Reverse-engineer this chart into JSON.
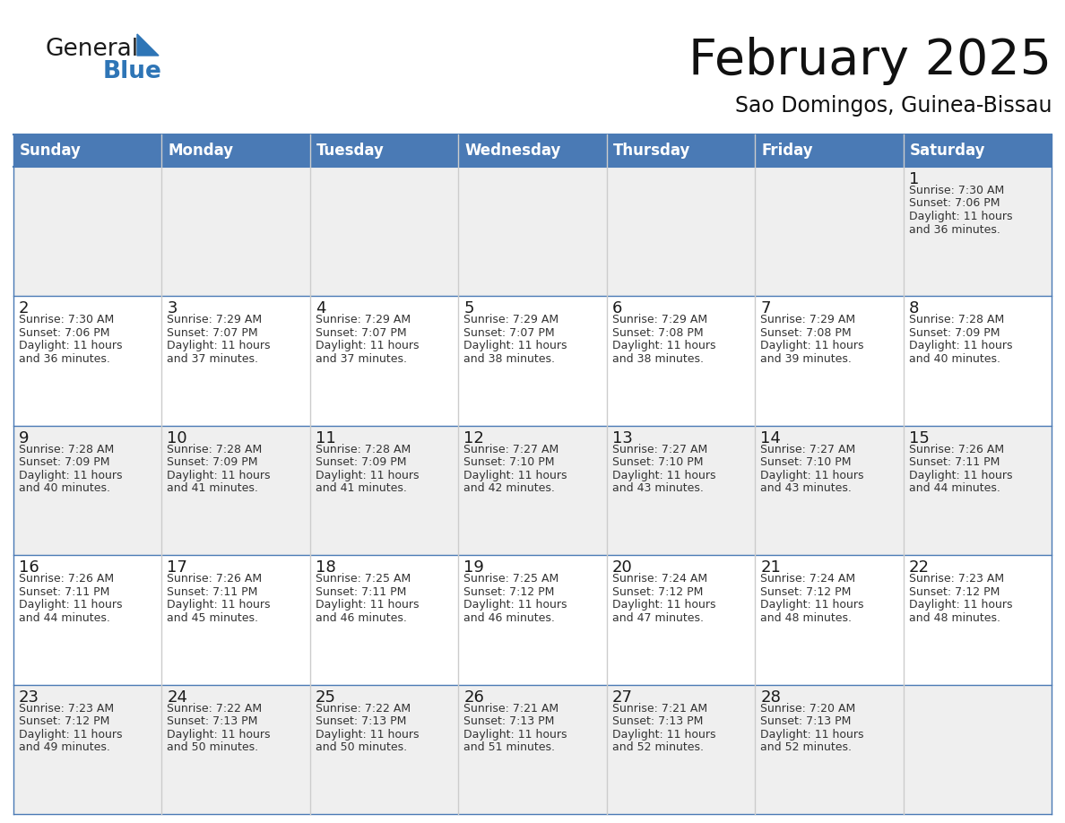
{
  "title": "February 2025",
  "subtitle": "Sao Domingos, Guinea-Bissau",
  "header_color": "#4a7ab5",
  "header_text_color": "#ffffff",
  "cell_bg_even": "#efefef",
  "cell_bg_odd": "#ffffff",
  "border_color": "#4a7ab5",
  "text_color": "#333333",
  "day_names": [
    "Sunday",
    "Monday",
    "Tuesday",
    "Wednesday",
    "Thursday",
    "Friday",
    "Saturday"
  ],
  "days": [
    {
      "day": 1,
      "col": 6,
      "row": 0,
      "sunrise": "7:30 AM",
      "sunset": "7:06 PM",
      "daylight_line1": "Daylight: 11 hours",
      "daylight_line2": "and 36 minutes."
    },
    {
      "day": 2,
      "col": 0,
      "row": 1,
      "sunrise": "7:30 AM",
      "sunset": "7:06 PM",
      "daylight_line1": "Daylight: 11 hours",
      "daylight_line2": "and 36 minutes."
    },
    {
      "day": 3,
      "col": 1,
      "row": 1,
      "sunrise": "7:29 AM",
      "sunset": "7:07 PM",
      "daylight_line1": "Daylight: 11 hours",
      "daylight_line2": "and 37 minutes."
    },
    {
      "day": 4,
      "col": 2,
      "row": 1,
      "sunrise": "7:29 AM",
      "sunset": "7:07 PM",
      "daylight_line1": "Daylight: 11 hours",
      "daylight_line2": "and 37 minutes."
    },
    {
      "day": 5,
      "col": 3,
      "row": 1,
      "sunrise": "7:29 AM",
      "sunset": "7:07 PM",
      "daylight_line1": "Daylight: 11 hours",
      "daylight_line2": "and 38 minutes."
    },
    {
      "day": 6,
      "col": 4,
      "row": 1,
      "sunrise": "7:29 AM",
      "sunset": "7:08 PM",
      "daylight_line1": "Daylight: 11 hours",
      "daylight_line2": "and 38 minutes."
    },
    {
      "day": 7,
      "col": 5,
      "row": 1,
      "sunrise": "7:29 AM",
      "sunset": "7:08 PM",
      "daylight_line1": "Daylight: 11 hours",
      "daylight_line2": "and 39 minutes."
    },
    {
      "day": 8,
      "col": 6,
      "row": 1,
      "sunrise": "7:28 AM",
      "sunset": "7:09 PM",
      "daylight_line1": "Daylight: 11 hours",
      "daylight_line2": "and 40 minutes."
    },
    {
      "day": 9,
      "col": 0,
      "row": 2,
      "sunrise": "7:28 AM",
      "sunset": "7:09 PM",
      "daylight_line1": "Daylight: 11 hours",
      "daylight_line2": "and 40 minutes."
    },
    {
      "day": 10,
      "col": 1,
      "row": 2,
      "sunrise": "7:28 AM",
      "sunset": "7:09 PM",
      "daylight_line1": "Daylight: 11 hours",
      "daylight_line2": "and 41 minutes."
    },
    {
      "day": 11,
      "col": 2,
      "row": 2,
      "sunrise": "7:28 AM",
      "sunset": "7:09 PM",
      "daylight_line1": "Daylight: 11 hours",
      "daylight_line2": "and 41 minutes."
    },
    {
      "day": 12,
      "col": 3,
      "row": 2,
      "sunrise": "7:27 AM",
      "sunset": "7:10 PM",
      "daylight_line1": "Daylight: 11 hours",
      "daylight_line2": "and 42 minutes."
    },
    {
      "day": 13,
      "col": 4,
      "row": 2,
      "sunrise": "7:27 AM",
      "sunset": "7:10 PM",
      "daylight_line1": "Daylight: 11 hours",
      "daylight_line2": "and 43 minutes."
    },
    {
      "day": 14,
      "col": 5,
      "row": 2,
      "sunrise": "7:27 AM",
      "sunset": "7:10 PM",
      "daylight_line1": "Daylight: 11 hours",
      "daylight_line2": "and 43 minutes."
    },
    {
      "day": 15,
      "col": 6,
      "row": 2,
      "sunrise": "7:26 AM",
      "sunset": "7:11 PM",
      "daylight_line1": "Daylight: 11 hours",
      "daylight_line2": "and 44 minutes."
    },
    {
      "day": 16,
      "col": 0,
      "row": 3,
      "sunrise": "7:26 AM",
      "sunset": "7:11 PM",
      "daylight_line1": "Daylight: 11 hours",
      "daylight_line2": "and 44 minutes."
    },
    {
      "day": 17,
      "col": 1,
      "row": 3,
      "sunrise": "7:26 AM",
      "sunset": "7:11 PM",
      "daylight_line1": "Daylight: 11 hours",
      "daylight_line2": "and 45 minutes."
    },
    {
      "day": 18,
      "col": 2,
      "row": 3,
      "sunrise": "7:25 AM",
      "sunset": "7:11 PM",
      "daylight_line1": "Daylight: 11 hours",
      "daylight_line2": "and 46 minutes."
    },
    {
      "day": 19,
      "col": 3,
      "row": 3,
      "sunrise": "7:25 AM",
      "sunset": "7:12 PM",
      "daylight_line1": "Daylight: 11 hours",
      "daylight_line2": "and 46 minutes."
    },
    {
      "day": 20,
      "col": 4,
      "row": 3,
      "sunrise": "7:24 AM",
      "sunset": "7:12 PM",
      "daylight_line1": "Daylight: 11 hours",
      "daylight_line2": "and 47 minutes."
    },
    {
      "day": 21,
      "col": 5,
      "row": 3,
      "sunrise": "7:24 AM",
      "sunset": "7:12 PM",
      "daylight_line1": "Daylight: 11 hours",
      "daylight_line2": "and 48 minutes."
    },
    {
      "day": 22,
      "col": 6,
      "row": 3,
      "sunrise": "7:23 AM",
      "sunset": "7:12 PM",
      "daylight_line1": "Daylight: 11 hours",
      "daylight_line2": "and 48 minutes."
    },
    {
      "day": 23,
      "col": 0,
      "row": 4,
      "sunrise": "7:23 AM",
      "sunset": "7:12 PM",
      "daylight_line1": "Daylight: 11 hours",
      "daylight_line2": "and 49 minutes."
    },
    {
      "day": 24,
      "col": 1,
      "row": 4,
      "sunrise": "7:22 AM",
      "sunset": "7:13 PM",
      "daylight_line1": "Daylight: 11 hours",
      "daylight_line2": "and 50 minutes."
    },
    {
      "day": 25,
      "col": 2,
      "row": 4,
      "sunrise": "7:22 AM",
      "sunset": "7:13 PM",
      "daylight_line1": "Daylight: 11 hours",
      "daylight_line2": "and 50 minutes."
    },
    {
      "day": 26,
      "col": 3,
      "row": 4,
      "sunrise": "7:21 AM",
      "sunset": "7:13 PM",
      "daylight_line1": "Daylight: 11 hours",
      "daylight_line2": "and 51 minutes."
    },
    {
      "day": 27,
      "col": 4,
      "row": 4,
      "sunrise": "7:21 AM",
      "sunset": "7:13 PM",
      "daylight_line1": "Daylight: 11 hours",
      "daylight_line2": "and 52 minutes."
    },
    {
      "day": 28,
      "col": 5,
      "row": 4,
      "sunrise": "7:20 AM",
      "sunset": "7:13 PM",
      "daylight_line1": "Daylight: 11 hours",
      "daylight_line2": "and 52 minutes."
    }
  ],
  "num_rows": 5,
  "fig_width": 11.88,
  "fig_height": 9.18,
  "dpi": 100
}
